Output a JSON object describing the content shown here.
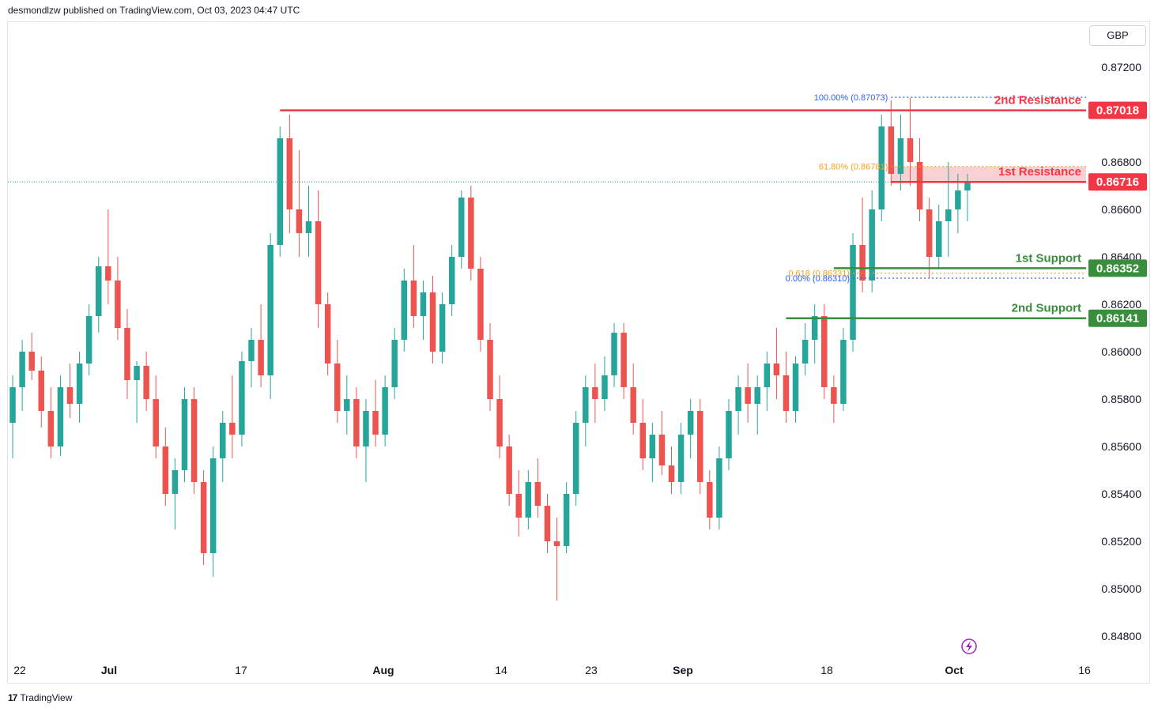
{
  "header": {
    "publisher_line": "desmondlzw published on TradingView.com, Oct 03, 2023 04:47 UTC"
  },
  "currency": "GBP",
  "footer": {
    "brand": "TradingView",
    "logo_icon": "tradingview-logo-icon"
  },
  "colors": {
    "up": "#26a69a",
    "down": "#ef5350",
    "resistance": "#f23645",
    "support": "#388e3c",
    "fib_blue": "#2962ff",
    "fib_orange": "#f7a21b",
    "grid": "#f0f3fa"
  },
  "chart_data": {
    "type": "candlestick",
    "ylim": [
      0.8475,
      0.8735
    ],
    "y_ticks": [
      "0.87200",
      "0.86800",
      "0.86600",
      "0.86400",
      "0.86200",
      "0.86000",
      "0.85800",
      "0.85600",
      "0.85400",
      "0.85200",
      "0.85000",
      "0.84800"
    ],
    "x_ticks": [
      "22",
      "Jul",
      "17",
      "Aug",
      "14",
      "23",
      "Sep",
      "18",
      "Oct",
      "16"
    ],
    "last_price": 0.86716,
    "candles": [
      [
        0.857,
        0.859,
        0.8555,
        0.8585
      ],
      [
        0.8585,
        0.8605,
        0.8575,
        0.86
      ],
      [
        0.86,
        0.8608,
        0.8588,
        0.8592
      ],
      [
        0.8592,
        0.8598,
        0.8568,
        0.8575
      ],
      [
        0.8575,
        0.8585,
        0.8555,
        0.856
      ],
      [
        0.856,
        0.859,
        0.8556,
        0.8585
      ],
      [
        0.8585,
        0.8595,
        0.8572,
        0.8578
      ],
      [
        0.8578,
        0.86,
        0.857,
        0.8595
      ],
      [
        0.8595,
        0.862,
        0.859,
        0.8615
      ],
      [
        0.8615,
        0.864,
        0.8608,
        0.8636
      ],
      [
        0.8636,
        0.866,
        0.862,
        0.863
      ],
      [
        0.863,
        0.864,
        0.8605,
        0.861
      ],
      [
        0.861,
        0.8618,
        0.858,
        0.8588
      ],
      [
        0.8588,
        0.8596,
        0.857,
        0.8594
      ],
      [
        0.8594,
        0.86,
        0.8575,
        0.858
      ],
      [
        0.858,
        0.859,
        0.8555,
        0.856
      ],
      [
        0.856,
        0.8568,
        0.8535,
        0.854
      ],
      [
        0.854,
        0.8555,
        0.8525,
        0.855
      ],
      [
        0.855,
        0.8585,
        0.8545,
        0.858
      ],
      [
        0.858,
        0.8585,
        0.854,
        0.8545
      ],
      [
        0.8545,
        0.855,
        0.851,
        0.8515
      ],
      [
        0.8515,
        0.856,
        0.8505,
        0.8555
      ],
      [
        0.8555,
        0.8575,
        0.8545,
        0.857
      ],
      [
        0.857,
        0.859,
        0.8555,
        0.8565
      ],
      [
        0.8565,
        0.86,
        0.856,
        0.8596
      ],
      [
        0.8596,
        0.861,
        0.8585,
        0.8605
      ],
      [
        0.8605,
        0.862,
        0.8585,
        0.859
      ],
      [
        0.859,
        0.865,
        0.858,
        0.8645
      ],
      [
        0.8645,
        0.8695,
        0.864,
        0.869
      ],
      [
        0.869,
        0.87,
        0.865,
        0.866
      ],
      [
        0.866,
        0.8685,
        0.864,
        0.865
      ],
      [
        0.865,
        0.867,
        0.864,
        0.8655
      ],
      [
        0.8655,
        0.8668,
        0.861,
        0.862
      ],
      [
        0.862,
        0.8625,
        0.859,
        0.8595
      ],
      [
        0.8595,
        0.8605,
        0.857,
        0.8575
      ],
      [
        0.8575,
        0.859,
        0.8565,
        0.858
      ],
      [
        0.858,
        0.8585,
        0.8555,
        0.856
      ],
      [
        0.856,
        0.858,
        0.8545,
        0.8575
      ],
      [
        0.8575,
        0.8588,
        0.856,
        0.8565
      ],
      [
        0.8565,
        0.859,
        0.856,
        0.8585
      ],
      [
        0.8585,
        0.861,
        0.858,
        0.8605
      ],
      [
        0.8605,
        0.8635,
        0.86,
        0.863
      ],
      [
        0.863,
        0.8645,
        0.861,
        0.8615
      ],
      [
        0.8615,
        0.863,
        0.8605,
        0.8625
      ],
      [
        0.8625,
        0.8632,
        0.8595,
        0.86
      ],
      [
        0.86,
        0.8625,
        0.8595,
        0.862
      ],
      [
        0.862,
        0.8645,
        0.8615,
        0.864
      ],
      [
        0.864,
        0.8668,
        0.8635,
        0.8665
      ],
      [
        0.8665,
        0.867,
        0.863,
        0.8635
      ],
      [
        0.8635,
        0.864,
        0.86,
        0.8605
      ],
      [
        0.8605,
        0.8612,
        0.8575,
        0.858
      ],
      [
        0.858,
        0.859,
        0.8555,
        0.856
      ],
      [
        0.856,
        0.8565,
        0.8535,
        0.854
      ],
      [
        0.854,
        0.855,
        0.8522,
        0.853
      ],
      [
        0.853,
        0.855,
        0.8525,
        0.8545
      ],
      [
        0.8545,
        0.8555,
        0.853,
        0.8535
      ],
      [
        0.8535,
        0.854,
        0.8515,
        0.852
      ],
      [
        0.852,
        0.853,
        0.8495,
        0.8518
      ],
      [
        0.8518,
        0.8545,
        0.8515,
        0.854
      ],
      [
        0.854,
        0.8575,
        0.8535,
        0.857
      ],
      [
        0.857,
        0.859,
        0.856,
        0.8585
      ],
      [
        0.8585,
        0.8595,
        0.857,
        0.858
      ],
      [
        0.858,
        0.8598,
        0.8575,
        0.859
      ],
      [
        0.859,
        0.8612,
        0.8585,
        0.8608
      ],
      [
        0.8608,
        0.8612,
        0.858,
        0.8585
      ],
      [
        0.8585,
        0.8595,
        0.8565,
        0.857
      ],
      [
        0.857,
        0.858,
        0.855,
        0.8555
      ],
      [
        0.8555,
        0.857,
        0.8545,
        0.8565
      ],
      [
        0.8565,
        0.8575,
        0.8548,
        0.8552
      ],
      [
        0.8552,
        0.856,
        0.854,
        0.8545
      ],
      [
        0.8545,
        0.857,
        0.854,
        0.8565
      ],
      [
        0.8565,
        0.858,
        0.8555,
        0.8575
      ],
      [
        0.8575,
        0.858,
        0.854,
        0.8545
      ],
      [
        0.8545,
        0.855,
        0.8525,
        0.853
      ],
      [
        0.853,
        0.856,
        0.8525,
        0.8555
      ],
      [
        0.8555,
        0.858,
        0.855,
        0.8575
      ],
      [
        0.8575,
        0.859,
        0.8565,
        0.8585
      ],
      [
        0.8585,
        0.8595,
        0.857,
        0.8578
      ],
      [
        0.8578,
        0.859,
        0.8565,
        0.8585
      ],
      [
        0.8585,
        0.86,
        0.8575,
        0.8595
      ],
      [
        0.8595,
        0.861,
        0.858,
        0.859
      ],
      [
        0.859,
        0.86,
        0.857,
        0.8575
      ],
      [
        0.8575,
        0.8598,
        0.857,
        0.8595
      ],
      [
        0.8595,
        0.8612,
        0.859,
        0.8605
      ],
      [
        0.8605,
        0.862,
        0.8595,
        0.8615
      ],
      [
        0.8615,
        0.862,
        0.858,
        0.8585
      ],
      [
        0.8585,
        0.859,
        0.857,
        0.8578
      ],
      [
        0.8578,
        0.861,
        0.8575,
        0.8605
      ],
      [
        0.8605,
        0.865,
        0.86,
        0.8645
      ],
      [
        0.8645,
        0.8665,
        0.8625,
        0.863
      ],
      [
        0.863,
        0.8668,
        0.8625,
        0.866
      ],
      [
        0.866,
        0.87,
        0.8655,
        0.8695
      ],
      [
        0.8695,
        0.8706,
        0.867,
        0.8675
      ],
      [
        0.8675,
        0.87,
        0.8668,
        0.869
      ],
      [
        0.869,
        0.8707,
        0.867,
        0.868
      ],
      [
        0.868,
        0.869,
        0.8655,
        0.866
      ],
      [
        0.866,
        0.8665,
        0.8631,
        0.864
      ],
      [
        0.864,
        0.8662,
        0.8635,
        0.8655
      ],
      [
        0.8655,
        0.868,
        0.864,
        0.866
      ],
      [
        0.866,
        0.8675,
        0.865,
        0.8668
      ],
      [
        0.8668,
        0.8675,
        0.8655,
        0.8672
      ]
    ],
    "levels": [
      {
        "label": "2nd Resistance",
        "price": 0.87018,
        "price_text": "0.87018",
        "kind": "resistance",
        "from": 28
      },
      {
        "label": "1st Resistance",
        "price": 0.86716,
        "price_text": "0.86716",
        "kind": "resistance",
        "from": 92
      },
      {
        "label": "1st Support",
        "price": 0.86352,
        "price_text": "0.86352",
        "kind": "support",
        "from": 86
      },
      {
        "label": "2nd Support",
        "price": 0.86141,
        "price_text": "0.86141",
        "kind": "support",
        "from": 81
      }
    ],
    "fibs": [
      {
        "label": "100.00% (0.87073)",
        "price": 0.87073,
        "kind": "blue",
        "from": 92
      },
      {
        "label": "61.80% (0.86781)",
        "price": 0.86781,
        "kind": "orange",
        "from": 92
      },
      {
        "label": "0.618 (0.86331)",
        "price": 0.86331,
        "kind": "orange",
        "from": 88
      },
      {
        "label": "0.00% (0.86310)",
        "price": 0.8631,
        "kind": "blue",
        "from": 88
      }
    ]
  }
}
